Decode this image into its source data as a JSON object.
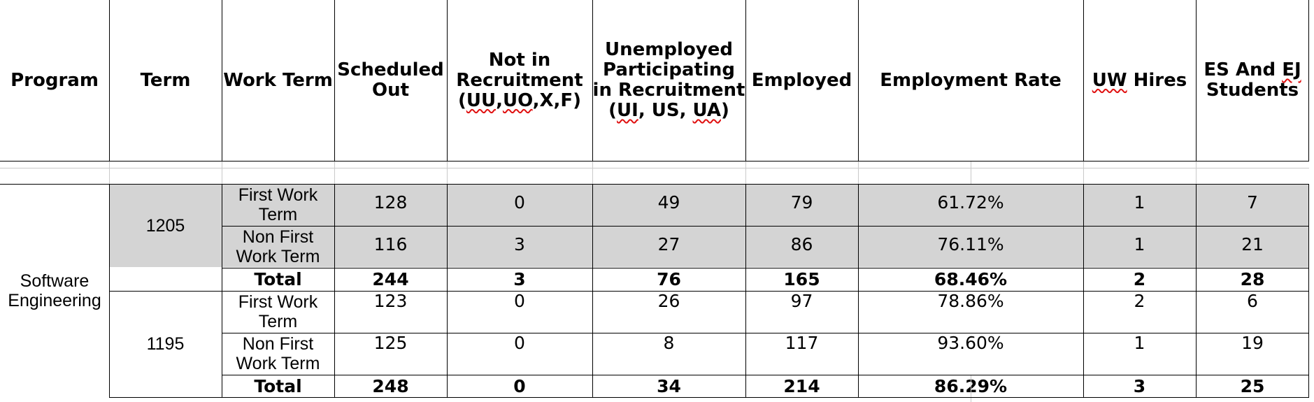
{
  "headers": {
    "program": "Program",
    "term": "Term",
    "work_term": "Work Term",
    "scheduled_out_1": "Scheduled",
    "scheduled_out_2": "Out",
    "not_recruit_1": "Not in",
    "not_recruit_2": "Recruitment",
    "not_recruit_3a": "(",
    "not_recruit_3b": "UU",
    "not_recruit_3c": ",",
    "not_recruit_3d": "UO",
    "not_recruit_3e": ",X,F)",
    "unemp_1": "Unemployed",
    "unemp_2": "Participating",
    "unemp_3": "in Recruitment",
    "unemp_4a": "(",
    "unemp_4b": "UI",
    "unemp_4c": ", US, ",
    "unemp_4d": "UA",
    "unemp_4e": ")",
    "employed": "Employed",
    "employment_rate": "Employment Rate",
    "uw_hires_a": "UW",
    "uw_hires_b": " Hires",
    "es_ej_1a": "ES And ",
    "es_ej_1b": "EJ",
    "es_ej_2": "Students"
  },
  "program": {
    "line1": "Software",
    "line2": "Engineering"
  },
  "terms": [
    {
      "term": "1205",
      "rows": [
        {
          "wt1": "First Work",
          "wt2": "Term",
          "scheduled": "128",
          "not_in": "0",
          "unemployed": "49",
          "employed": "79",
          "rate": "61.72%",
          "uw": "1",
          "es": "7"
        },
        {
          "wt1": "Non First",
          "wt2": "Work Term",
          "scheduled": "116",
          "not_in": "3",
          "unemployed": "27",
          "employed": "86",
          "rate": "76.11%",
          "uw": "1",
          "es": "21"
        }
      ],
      "total": {
        "label": "Total",
        "scheduled": "244",
        "not_in": "3",
        "unemployed": "76",
        "employed": "165",
        "rate": "68.46%",
        "uw": "2",
        "es": "28"
      }
    },
    {
      "term": "1195",
      "rows": [
        {
          "wt1": "First Work",
          "wt2": "Term",
          "scheduled": "123",
          "not_in": "0",
          "unemployed": "26",
          "employed": "97",
          "rate": "78.86%",
          "uw": "2",
          "es": "6"
        },
        {
          "wt1": "Non First",
          "wt2": "Work Term",
          "scheduled": "125",
          "not_in": "0",
          "unemployed": "8",
          "employed": "117",
          "rate": "93.60%",
          "uw": "1",
          "es": "19"
        }
      ],
      "total": {
        "label": "Total",
        "scheduled": "248",
        "not_in": "0",
        "unemployed": "34",
        "employed": "214",
        "rate": "86.29%",
        "uw": "3",
        "es": "25"
      }
    }
  ],
  "colors": {
    "highlight_gray": "#d4d4d4",
    "grid_black": "#000000",
    "spell_underline": "#e01010"
  }
}
